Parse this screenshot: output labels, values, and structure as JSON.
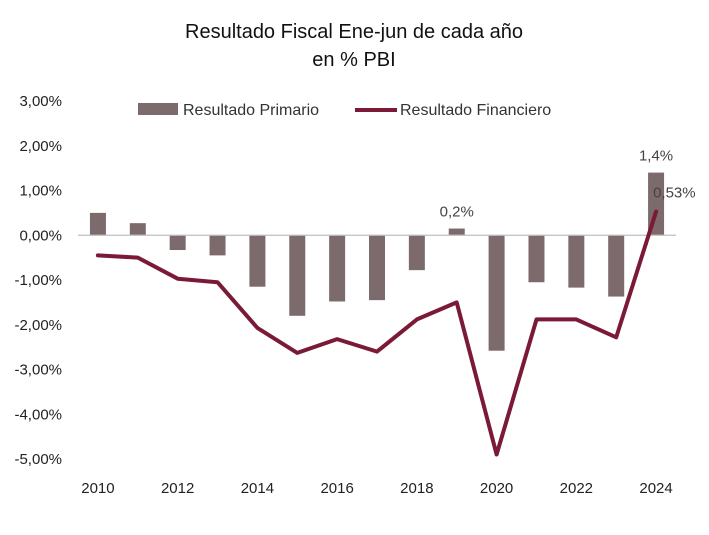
{
  "chart_data": {
    "type": "bar",
    "title_line1": "Resultado Fiscal Ene-jun de cada año",
    "title_line2": "en % PBI",
    "categories": [
      "2010",
      "2011",
      "2012",
      "2013",
      "2014",
      "2015",
      "2016",
      "2017",
      "2018",
      "2019",
      "2020",
      "2021",
      "2022",
      "2023",
      "2024"
    ],
    "x_tick_labels": [
      "2010",
      "2012",
      "2014",
      "2016",
      "2018",
      "2020",
      "2022",
      "2024"
    ],
    "y_tick_labels": [
      "3,00%",
      "2,00%",
      "1,00%",
      "0,00%",
      "-1,00%",
      "-2,00%",
      "-3,00%",
      "-4,00%",
      "-5,00%"
    ],
    "ylim": [
      -5,
      3
    ],
    "series": [
      {
        "name": "Resultado Primario",
        "type": "bar",
        "color": "#7d6a6d",
        "values": [
          0.5,
          0.27,
          -0.33,
          -0.45,
          -1.15,
          -1.8,
          -1.48,
          -1.45,
          -0.78,
          0.15,
          -2.58,
          -1.05,
          -1.17,
          -1.37,
          1.4
        ]
      },
      {
        "name": "Resultado Financiero",
        "type": "line",
        "color": "#7a1a36",
        "values": [
          -0.45,
          -0.5,
          -0.97,
          -1.05,
          -2.07,
          -2.63,
          -2.32,
          -2.6,
          -1.88,
          -1.5,
          -4.9,
          -1.88,
          -1.88,
          -2.28,
          0.53
        ]
      }
    ],
    "annotations": [
      {
        "label": "0,2%",
        "category_index": 9,
        "series": "Resultado Primario"
      },
      {
        "label": "1,4%",
        "category_index": 14,
        "series": "Resultado Primario"
      },
      {
        "label": "0,53%",
        "category_index": 14,
        "series": "Resultado Financiero"
      }
    ],
    "legend": {
      "placement": "top"
    }
  }
}
